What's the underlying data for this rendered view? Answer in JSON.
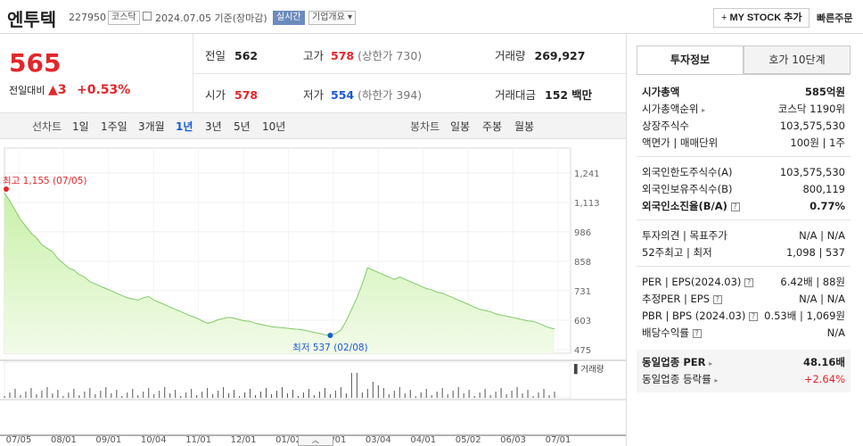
{
  "header": {
    "name": "엔투텍",
    "code": "227950",
    "market": "코스닥",
    "date_text": "2024.07.05 기준(장마감)",
    "realtime": "실시간",
    "company_info": "기업개요",
    "mystock": "MY STOCK 추가",
    "quick_order": "빠른주문"
  },
  "price": {
    "current": "565",
    "change_label": "전일대비",
    "change": "3",
    "pct": "+0.53%"
  },
  "stats": {
    "prev_label": "전일",
    "prev": "562",
    "high_label": "고가",
    "high": "578",
    "upper_limit": "(상한가 730)",
    "volume_label": "거래량",
    "volume": "269,927",
    "open_label": "시가",
    "open": "578",
    "low_label": "저가",
    "low": "554",
    "lower_limit": "(하한가 394)",
    "amount_label": "거래대금",
    "amount": "152",
    "amount_unit": "백만"
  },
  "line_tabs": {
    "label": "선차트",
    "items": [
      "1일",
      "1주일",
      "3개월",
      "1년",
      "3년",
      "5년",
      "10년"
    ],
    "active": "1년"
  },
  "candle_tabs": {
    "label": "봉차트",
    "items": [
      "일봉",
      "주봉",
      "월봉"
    ]
  },
  "chart_data": {
    "type": "area",
    "yticks": [
      1241,
      1113,
      986,
      858,
      731,
      603,
      475
    ],
    "xticks": [
      "07/05",
      "08/01",
      "09/01",
      "10/04",
      "11/01",
      "12/01",
      "01/02",
      "02/01",
      "03/04",
      "04/01",
      "05/02",
      "06/03",
      "07/01"
    ],
    "high_label": "최고 1,155 (07/05)",
    "low_label": "최저 537 (02/08)",
    "volume_label": "거래량",
    "values": [
      1155,
      1120,
      1080,
      1040,
      1010,
      980,
      960,
      930,
      915,
      900,
      870,
      850,
      830,
      820,
      800,
      790,
      770,
      760,
      750,
      740,
      730,
      720,
      710,
      700,
      695,
      690,
      700,
      705,
      690,
      680,
      670,
      660,
      650,
      640,
      630,
      620,
      612,
      600,
      590,
      595,
      605,
      610,
      615,
      612,
      605,
      600,
      598,
      590,
      585,
      580,
      575,
      572,
      570,
      568,
      565,
      563,
      560,
      555,
      550,
      545,
      540,
      537,
      545,
      560,
      600,
      650,
      700,
      760,
      830,
      820,
      810,
      800,
      790,
      780,
      790,
      780,
      770,
      760,
      750,
      740,
      735,
      725,
      720,
      710,
      700,
      690,
      680,
      670,
      660,
      650,
      645,
      640,
      630,
      625,
      620,
      615,
      610,
      605,
      600,
      598,
      590,
      580,
      570,
      565
    ]
  },
  "side": {
    "tab_active": "투자정보",
    "tab_other": "호가 10단계",
    "r1": {
      "l": "시가총액",
      "v": "585억원"
    },
    "r2": {
      "l": "시가총액순위",
      "v": "코스닥 1190위"
    },
    "r3": {
      "l": "상장주식수",
      "v": "103,575,530"
    },
    "r4": {
      "l": "액면가 | 매매단위",
      "v": "100원 | 1주"
    },
    "r5": {
      "l": "외국인한도주식수(A)",
      "v": "103,575,530"
    },
    "r6": {
      "l": "외국인보유주식수(B)",
      "v": "800,119"
    },
    "r7": {
      "l": "외국인소진율(B/A)",
      "v": "0.77%"
    },
    "r8": {
      "l": "투자의견 | 목표주가",
      "v": "N/A | N/A"
    },
    "r9": {
      "l": "52주최고 | 최저",
      "v": "1,098 | 537"
    },
    "r10": {
      "l": "PER | EPS(2024.03)",
      "v": "6.42배 | 88원"
    },
    "r11": {
      "l": "추정PER | EPS",
      "v": "N/A | N/A"
    },
    "r12": {
      "l": "PBR | BPS (2024.03)",
      "v": "0.53배 | 1,069원"
    },
    "r13": {
      "l": "배당수익률",
      "v": "N/A"
    },
    "r14": {
      "l": "동일업종 PER",
      "v": "48.16배"
    },
    "r15": {
      "l": "동일업종 등락률",
      "v": "+2.64%"
    }
  }
}
